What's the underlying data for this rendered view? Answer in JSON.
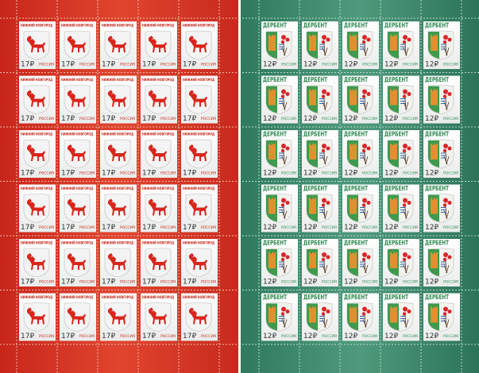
{
  "sheets": [
    {
      "city": "НИЖНИЙ НОВГОРОД",
      "value": "17₽",
      "country": "РОССИЯ"
    },
    {
      "city": "ДЕРБЕНТ",
      "value": "12₽",
      "country": "РОССИЯ"
    }
  ]
}
